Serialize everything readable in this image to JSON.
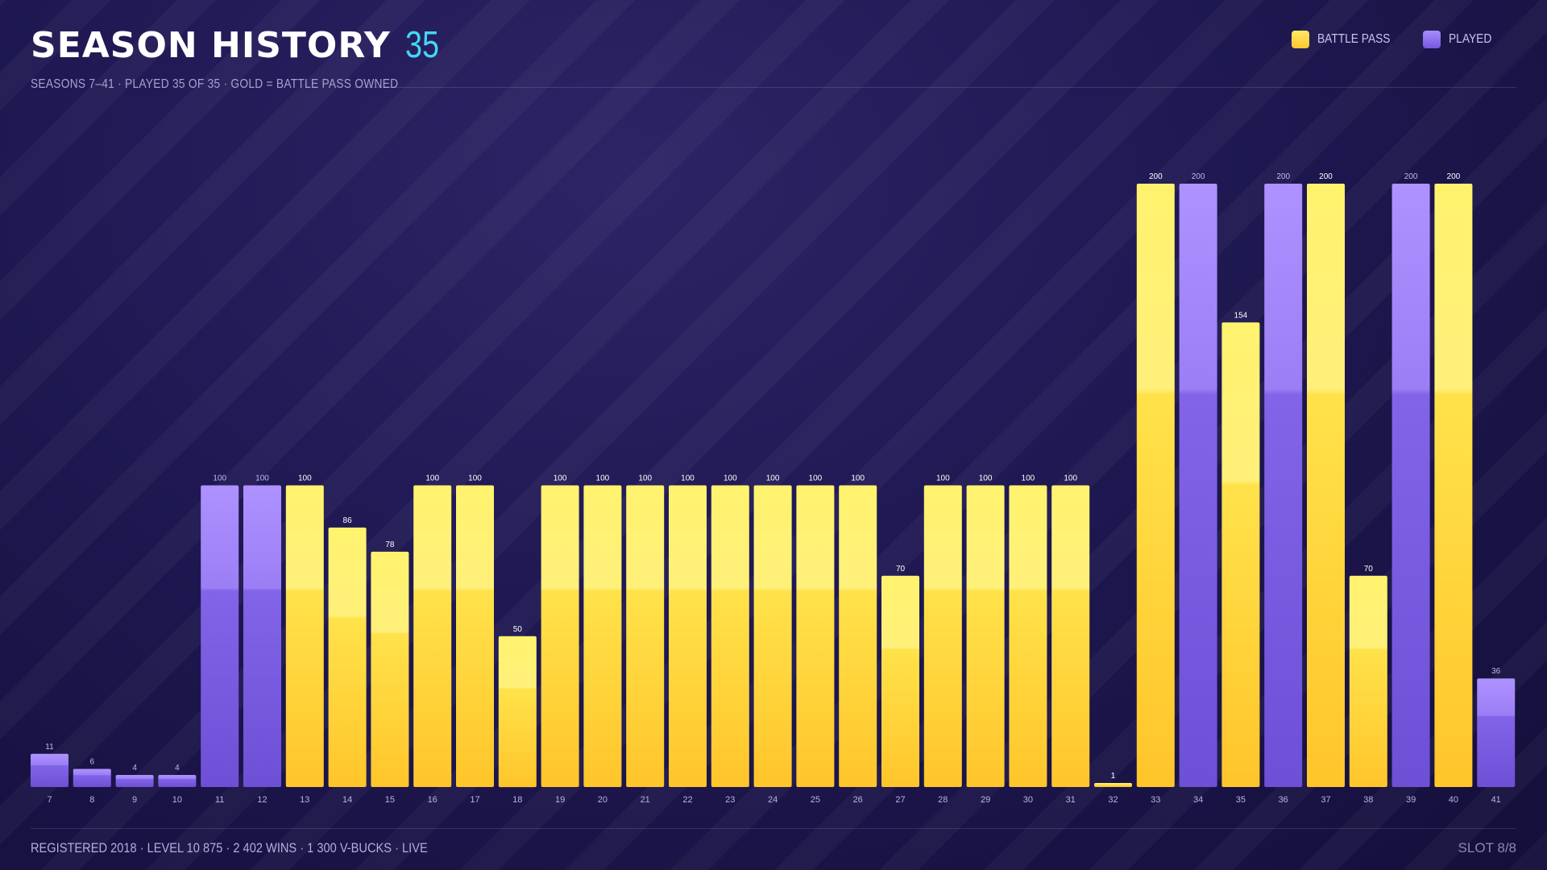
{
  "header": {
    "title": "SEASON HISTORY",
    "count": "35",
    "subtitle": "SEASONS 7–41 · PLAYED 35 OF 35 · GOLD = BATTLE PASS OWNED"
  },
  "legend": [
    {
      "label": "BATTLE PASS",
      "color": "#ffd23f"
    },
    {
      "label": "PLAYED",
      "color": "#8b6ff0"
    }
  ],
  "footer": {
    "left": "REGISTERED 2018 · LEVEL 10 875 · 2 402 WINS · 1 300 V-BUCKS · LIVE",
    "right": "SLOT 8/8"
  },
  "colors": {
    "battle_pass": "#ffd23f",
    "played": "#8b6ff0",
    "accent": "#42d7f5"
  },
  "chart_data": {
    "type": "bar",
    "categories": [
      "7",
      "8",
      "9",
      "10",
      "11",
      "12",
      "13",
      "14",
      "15",
      "16",
      "17",
      "18",
      "19",
      "20",
      "21",
      "22",
      "23",
      "24",
      "25",
      "26",
      "27",
      "28",
      "29",
      "30",
      "31",
      "32",
      "33",
      "34",
      "35",
      "36",
      "37",
      "38",
      "39",
      "40",
      "41"
    ],
    "values": [
      11,
      6,
      4,
      4,
      100,
      100,
      100,
      86,
      78,
      100,
      100,
      50,
      100,
      100,
      100,
      100,
      100,
      100,
      100,
      100,
      70,
      100,
      100,
      100,
      100,
      1,
      200,
      200,
      154,
      200,
      200,
      70,
      200,
      200,
      36
    ],
    "battle_pass": [
      false,
      false,
      false,
      false,
      false,
      false,
      true,
      true,
      true,
      true,
      true,
      true,
      true,
      true,
      true,
      true,
      true,
      true,
      true,
      true,
      true,
      true,
      true,
      true,
      true,
      true,
      true,
      false,
      true,
      false,
      true,
      true,
      false,
      true,
      false
    ],
    "ylim": [
      0,
      200
    ],
    "grid": false,
    "legend_position": "top-right",
    "series": [
      {
        "name": "BATTLE PASS"
      },
      {
        "name": "PLAYED"
      }
    ]
  }
}
